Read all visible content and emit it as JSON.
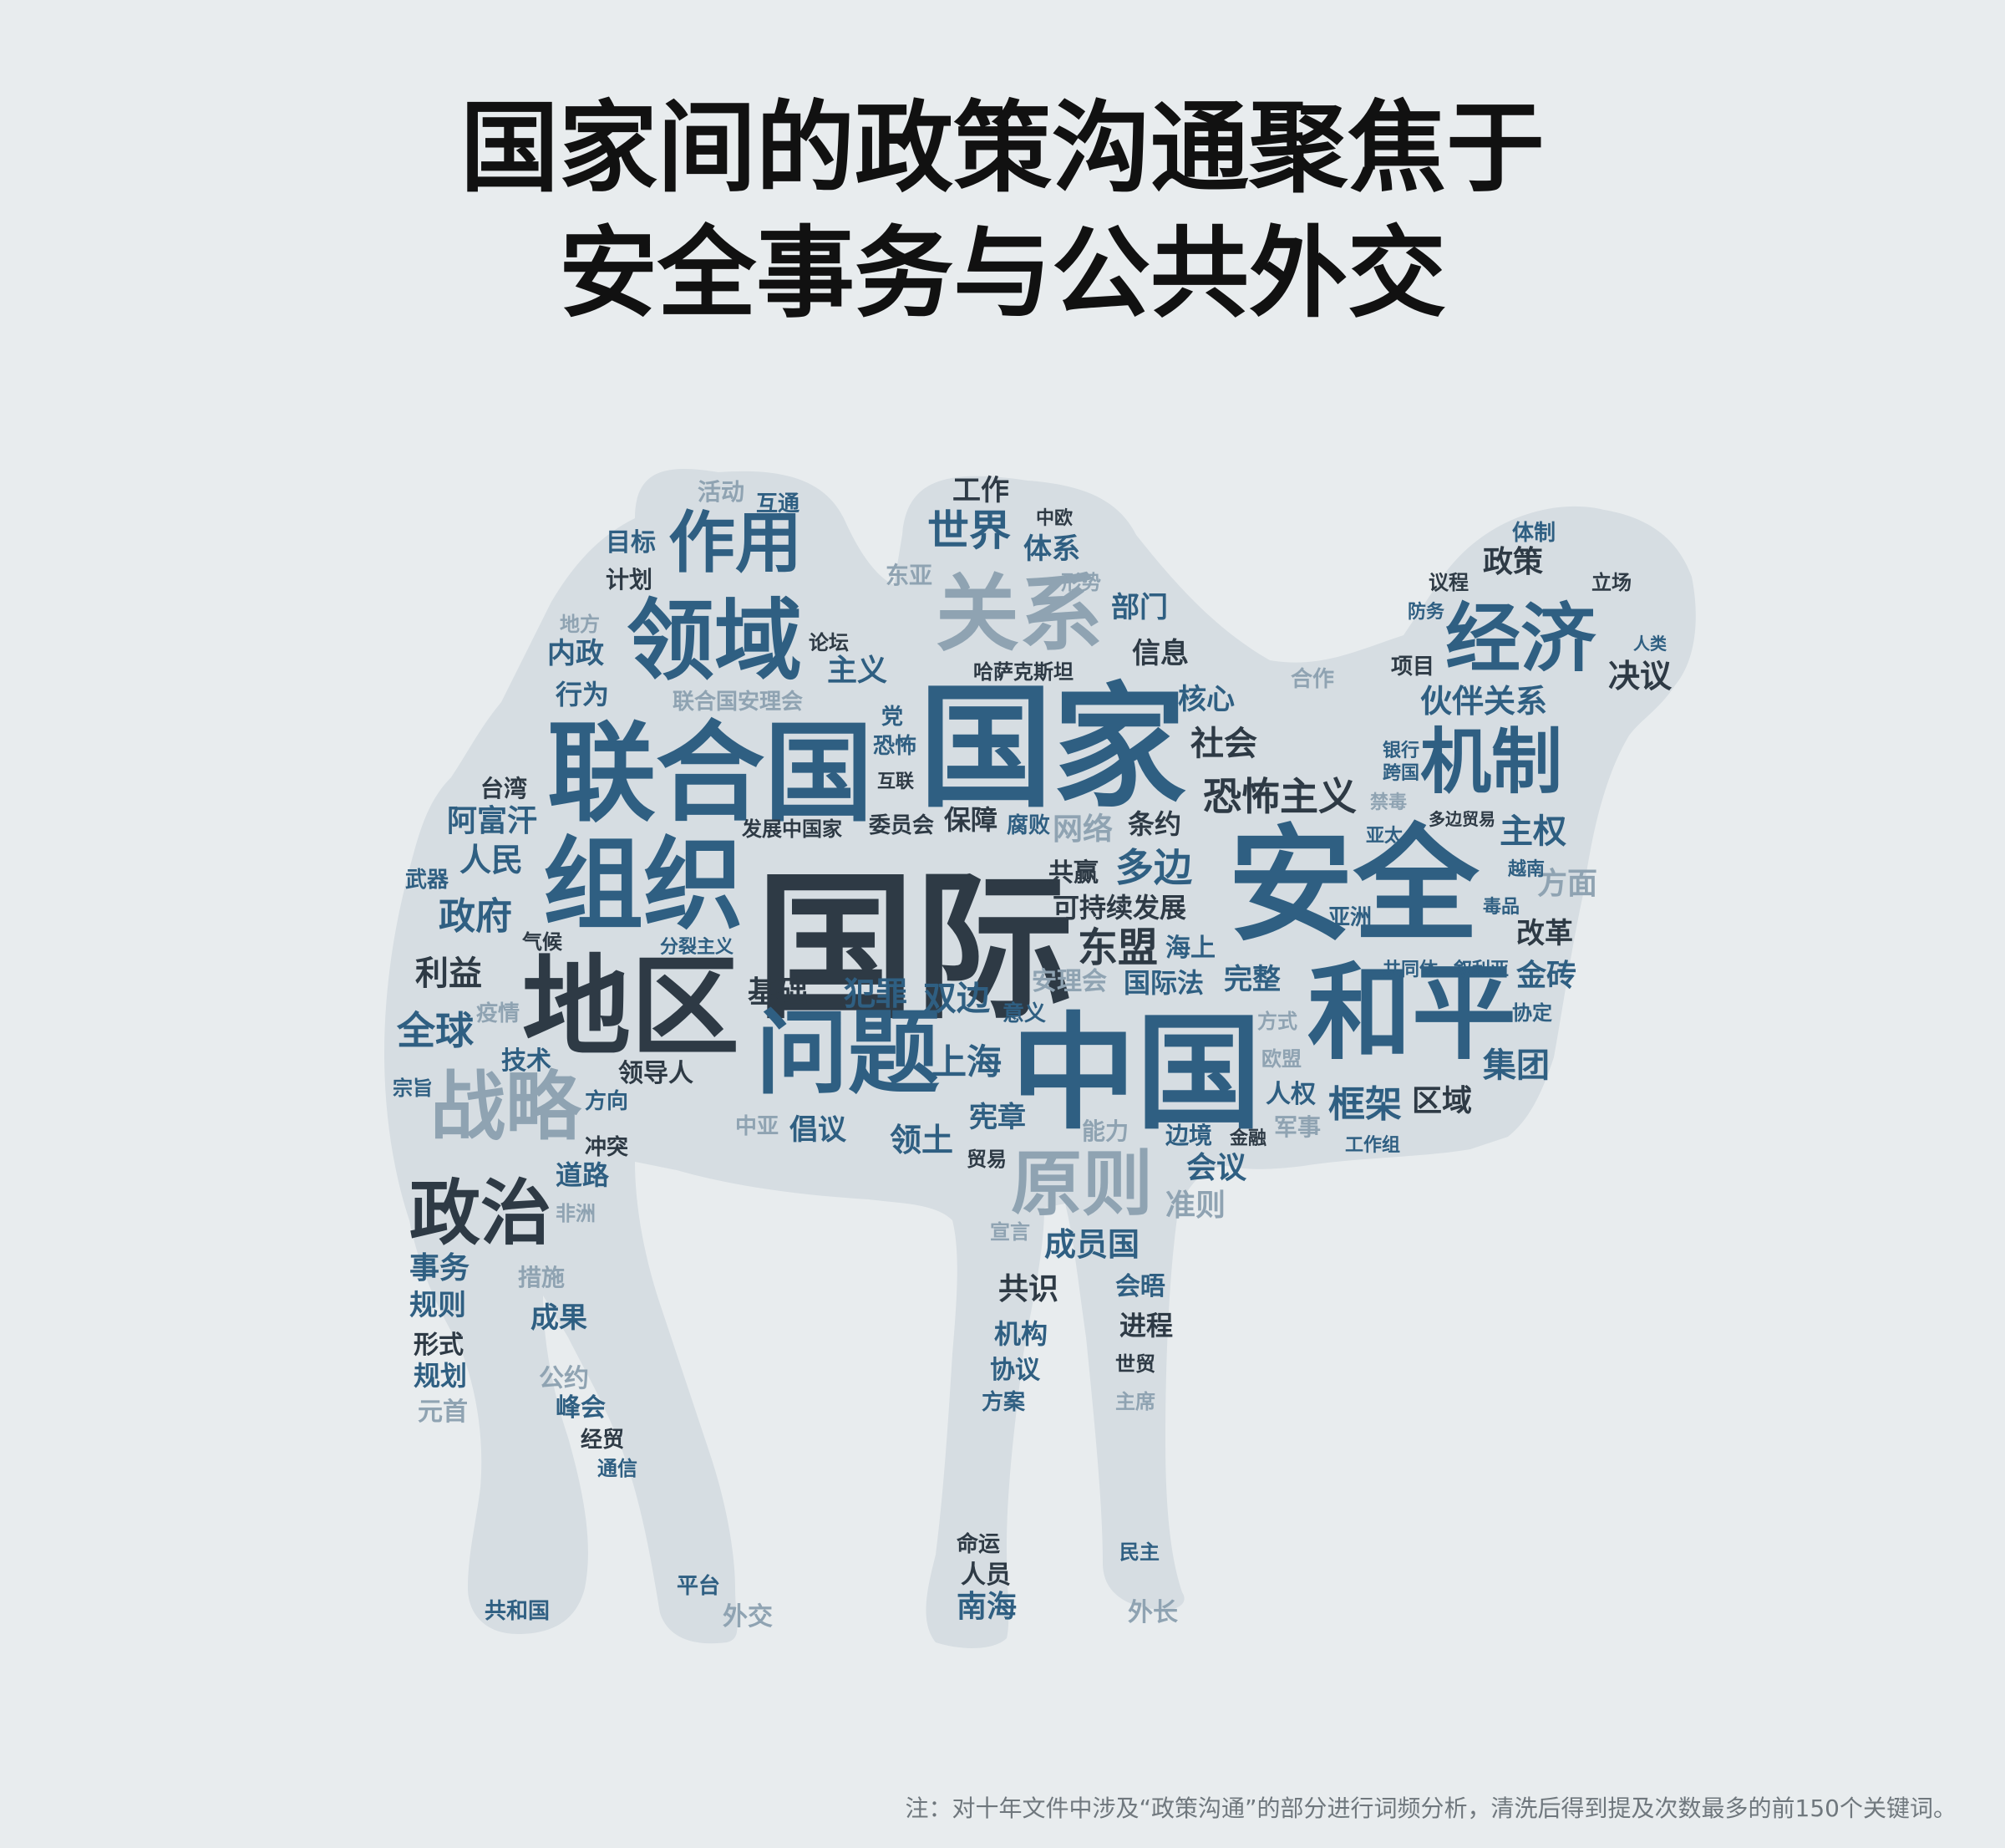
{
  "title": {
    "line1": "国家间的政策沟通聚焦于",
    "line2": "安全事务与公共外交"
  },
  "colors": {
    "background": "#e8ecee",
    "silhouette": "#d6dde2",
    "dark": "#2e3a45",
    "blue": "#2f5f82",
    "light": "#8fa3b2"
  },
  "words": [
    {
      "text": "国际",
      "rank": 1,
      "color": "dark"
    },
    {
      "text": "国家",
      "rank": 2,
      "color": "blue"
    },
    {
      "text": "安全",
      "rank": 3,
      "color": "blue"
    },
    {
      "text": "中国",
      "rank": 4,
      "color": "blue"
    },
    {
      "text": "联合国",
      "rank": 5,
      "color": "blue"
    },
    {
      "text": "组织",
      "rank": 6,
      "color": "blue"
    },
    {
      "text": "地区",
      "rank": 7,
      "color": "dark"
    },
    {
      "text": "和平",
      "rank": 8,
      "color": "blue"
    },
    {
      "text": "问题",
      "rank": 9,
      "color": "blue"
    },
    {
      "text": "领域",
      "rank": 10,
      "color": "blue"
    },
    {
      "text": "关系",
      "rank": 11,
      "color": "light"
    },
    {
      "text": "经济",
      "rank": 12,
      "color": "blue"
    },
    {
      "text": "机制",
      "rank": 13,
      "color": "blue"
    },
    {
      "text": "战略",
      "rank": 14,
      "color": "light"
    },
    {
      "text": "政治",
      "rank": 15,
      "color": "dark"
    },
    {
      "text": "原则",
      "rank": 16,
      "color": "light"
    },
    {
      "text": "作用",
      "rank": 17,
      "color": "blue"
    },
    {
      "text": "恐怖主义",
      "rank": 18,
      "color": "dark"
    },
    {
      "text": "世界",
      "rank": 19,
      "color": "blue"
    },
    {
      "text": "伙伴关系",
      "rank": 20,
      "color": "blue"
    },
    {
      "text": "东盟",
      "rank": 21,
      "color": "dark"
    },
    {
      "text": "多边",
      "rank": 22,
      "color": "blue"
    },
    {
      "text": "框架",
      "rank": 23,
      "color": "blue"
    },
    {
      "text": "全球",
      "rank": 24,
      "color": "blue"
    },
    {
      "text": "政府",
      "rank": 25,
      "color": "blue"
    },
    {
      "text": "利益",
      "rank": 26,
      "color": "dark"
    },
    {
      "text": "上海",
      "rank": 27,
      "color": "blue"
    },
    {
      "text": "双边",
      "rank": 28,
      "color": "blue"
    },
    {
      "text": "犯罪",
      "rank": 29,
      "color": "blue"
    },
    {
      "text": "基础",
      "rank": 30,
      "color": "dark"
    },
    {
      "text": "主权",
      "rank": 31,
      "color": "blue"
    },
    {
      "text": "方面",
      "rank": 32,
      "color": "light"
    },
    {
      "text": "集团",
      "rank": 33,
      "color": "blue"
    },
    {
      "text": "区域",
      "rank": 34,
      "color": "dark"
    },
    {
      "text": "金砖",
      "rank": 35,
      "color": "blue"
    },
    {
      "text": "改革",
      "rank": 36,
      "color": "dark"
    },
    {
      "text": "人民",
      "rank": 37,
      "color": "blue"
    },
    {
      "text": "阿富汗",
      "rank": 38,
      "color": "blue"
    },
    {
      "text": "决议",
      "rank": 39,
      "color": "dark"
    },
    {
      "text": "政策",
      "rank": 40,
      "color": "dark"
    },
    {
      "text": "社会",
      "rank": 41,
      "color": "dark"
    },
    {
      "text": "主义",
      "rank": 42,
      "color": "blue"
    },
    {
      "text": "部门",
      "rank": 43,
      "color": "blue"
    },
    {
      "text": "信息",
      "rank": 44,
      "color": "dark"
    },
    {
      "text": "体系",
      "rank": 45,
      "color": "blue"
    },
    {
      "text": "工作",
      "rank": 46,
      "color": "dark"
    },
    {
      "text": "内政",
      "rank": 47,
      "color": "blue"
    },
    {
      "text": "行为",
      "rank": 48,
      "color": "blue"
    },
    {
      "text": "核心",
      "rank": 49,
      "color": "blue"
    },
    {
      "text": "条约",
      "rank": 50,
      "color": "dark"
    },
    {
      "text": "网络",
      "rank": 51,
      "color": "light"
    },
    {
      "text": "保障",
      "rank": 52,
      "color": "dark"
    },
    {
      "text": "海上",
      "rank": 53,
      "color": "blue"
    },
    {
      "text": "国际法",
      "rank": 54,
      "color": "blue"
    },
    {
      "text": "完整",
      "rank": 55,
      "color": "blue"
    },
    {
      "text": "安理会",
      "rank": 56,
      "color": "light"
    },
    {
      "text": "会议",
      "rank": 57,
      "color": "blue"
    },
    {
      "text": "准则",
      "rank": 58,
      "color": "light"
    },
    {
      "text": "成员国",
      "rank": 59,
      "color": "blue"
    },
    {
      "text": "倡议",
      "rank": 60,
      "color": "blue"
    },
    {
      "text": "领土",
      "rank": 61,
      "color": "blue"
    },
    {
      "text": "宪章",
      "rank": 62,
      "color": "blue"
    },
    {
      "text": "可持续发展",
      "rank": 63,
      "color": "dark"
    },
    {
      "text": "共赢",
      "rank": 64,
      "color": "dark"
    },
    {
      "text": "人权",
      "rank": 65,
      "color": "blue"
    },
    {
      "text": "技术",
      "rank": 66,
      "color": "blue"
    },
    {
      "text": "领导人",
      "rank": 67,
      "color": "dark"
    },
    {
      "text": "道路",
      "rank": 68,
      "color": "blue"
    },
    {
      "text": "事务",
      "rank": 69,
      "color": "blue"
    },
    {
      "text": "规则",
      "rank": 70,
      "color": "blue"
    },
    {
      "text": "形式",
      "rank": 71,
      "color": "dark"
    },
    {
      "text": "规划",
      "rank": 72,
      "color": "blue"
    },
    {
      "text": "成果",
      "rank": 73,
      "color": "blue"
    },
    {
      "text": "峰会",
      "rank": 74,
      "color": "blue"
    },
    {
      "text": "共识",
      "rank": 75,
      "color": "dark"
    },
    {
      "text": "会晤",
      "rank": 76,
      "color": "blue"
    },
    {
      "text": "机构",
      "rank": 77,
      "color": "blue"
    },
    {
      "text": "进程",
      "rank": 78,
      "color": "dark"
    },
    {
      "text": "协议",
      "rank": 79,
      "color": "blue"
    },
    {
      "text": "南海",
      "rank": 80,
      "color": "blue"
    },
    {
      "text": "人员",
      "rank": 81,
      "color": "dark"
    },
    {
      "text": "目标",
      "rank": 82,
      "color": "blue"
    },
    {
      "text": "计划",
      "rank": 83,
      "color": "dark"
    },
    {
      "text": "互通",
      "rank": 84,
      "color": "blue"
    },
    {
      "text": "活动",
      "rank": 85,
      "color": "light"
    },
    {
      "text": "东亚",
      "rank": 86,
      "color": "light"
    },
    {
      "text": "中欧",
      "rank": 87,
      "color": "dark"
    },
    {
      "text": "形势",
      "rank": 88,
      "color": "light"
    },
    {
      "text": "地方",
      "rank": 89,
      "color": "light"
    },
    {
      "text": "论坛",
      "rank": 90,
      "color": "dark"
    },
    {
      "text": "哈萨克斯坦",
      "rank": 91,
      "color": "dark"
    },
    {
      "text": "联合国安理会",
      "rank": 92,
      "color": "light"
    },
    {
      "text": "党",
      "rank": 93,
      "color": "blue"
    },
    {
      "text": "恐怖",
      "rank": 94,
      "color": "blue"
    },
    {
      "text": "互联",
      "rank": 95,
      "color": "dark"
    },
    {
      "text": "台湾",
      "rank": 96,
      "color": "dark"
    },
    {
      "text": "发展中国家",
      "rank": 97,
      "color": "dark"
    },
    {
      "text": "委员会",
      "rank": 98,
      "color": "dark"
    },
    {
      "text": "腐败",
      "rank": 99,
      "color": "blue"
    },
    {
      "text": "武器",
      "rank": 100,
      "color": "blue"
    },
    {
      "text": "气候",
      "rank": 101,
      "color": "dark"
    },
    {
      "text": "分裂主义",
      "rank": 102,
      "color": "blue"
    },
    {
      "text": "疫情",
      "rank": 103,
      "color": "light"
    },
    {
      "text": "宗旨",
      "rank": 104,
      "color": "blue"
    },
    {
      "text": "方向",
      "rank": 105,
      "color": "blue"
    },
    {
      "text": "冲突",
      "rank": 106,
      "color": "dark"
    },
    {
      "text": "非洲",
      "rank": 107,
      "color": "light"
    },
    {
      "text": "措施",
      "rank": 108,
      "color": "light"
    },
    {
      "text": "公约",
      "rank": 109,
      "color": "light"
    },
    {
      "text": "元首",
      "rank": 110,
      "color": "light"
    },
    {
      "text": "经贸",
      "rank": 111,
      "color": "dark"
    },
    {
      "text": "通信",
      "rank": 112,
      "color": "blue"
    },
    {
      "text": "共和国",
      "rank": 113,
      "color": "blue"
    },
    {
      "text": "平台",
      "rank": 114,
      "color": "blue"
    },
    {
      "text": "外交",
      "rank": 115,
      "color": "light"
    },
    {
      "text": "命运",
      "rank": 116,
      "color": "dark"
    },
    {
      "text": "民主",
      "rank": 117,
      "color": "blue"
    },
    {
      "text": "外长",
      "rank": 118,
      "color": "light"
    },
    {
      "text": "主席",
      "rank": 119,
      "color": "light"
    },
    {
      "text": "方案",
      "rank": 120,
      "color": "blue"
    },
    {
      "text": "世贸",
      "rank": 121,
      "color": "dark"
    },
    {
      "text": "宣言",
      "rank": 122,
      "color": "light"
    },
    {
      "text": "贸易",
      "rank": 123,
      "color": "dark"
    },
    {
      "text": "中亚",
      "rank": 124,
      "color": "light"
    },
    {
      "text": "能力",
      "rank": 125,
      "color": "light"
    },
    {
      "text": "边境",
      "rank": 126,
      "color": "blue"
    },
    {
      "text": "金融",
      "rank": 127,
      "color": "dark"
    },
    {
      "text": "军事",
      "rank": 128,
      "color": "light"
    },
    {
      "text": "工作组",
      "rank": 129,
      "color": "blue"
    },
    {
      "text": "方式",
      "rank": 130,
      "color": "light"
    },
    {
      "text": "欧盟",
      "rank": 131,
      "color": "light"
    },
    {
      "text": "意义",
      "rank": 132,
      "color": "blue"
    },
    {
      "text": "协定",
      "rank": 133,
      "color": "blue"
    },
    {
      "text": "共同体",
      "rank": 134,
      "color": "blue"
    },
    {
      "text": "叙利亚",
      "rank": 135,
      "color": "blue"
    },
    {
      "text": "亚洲",
      "rank": 136,
      "color": "blue"
    },
    {
      "text": "毒品",
      "rank": 137,
      "color": "blue"
    },
    {
      "text": "越南",
      "rank": 138,
      "color": "blue"
    },
    {
      "text": "亚太",
      "rank": 139,
      "color": "blue"
    },
    {
      "text": "多边贸易",
      "rank": 140,
      "color": "dark"
    },
    {
      "text": "禁毒",
      "rank": 141,
      "color": "light"
    },
    {
      "text": "跨国",
      "rank": 142,
      "color": "blue"
    },
    {
      "text": "银行",
      "rank": 143,
      "color": "blue"
    },
    {
      "text": "项目",
      "rank": 144,
      "color": "dark"
    },
    {
      "text": "人类",
      "rank": 145,
      "color": "blue"
    },
    {
      "text": "防务",
      "rank": 146,
      "color": "blue"
    },
    {
      "text": "议程",
      "rank": 147,
      "color": "dark"
    },
    {
      "text": "立场",
      "rank": 148,
      "color": "dark"
    },
    {
      "text": "体制",
      "rank": 149,
      "color": "blue"
    },
    {
      "text": "合作",
      "rank": 150,
      "color": "light"
    }
  ],
  "footnote": "注：对十年文件中涉及“政策沟通”的部分进行词频分析，清洗后得到提及次数最多的前150个关键词。"
}
